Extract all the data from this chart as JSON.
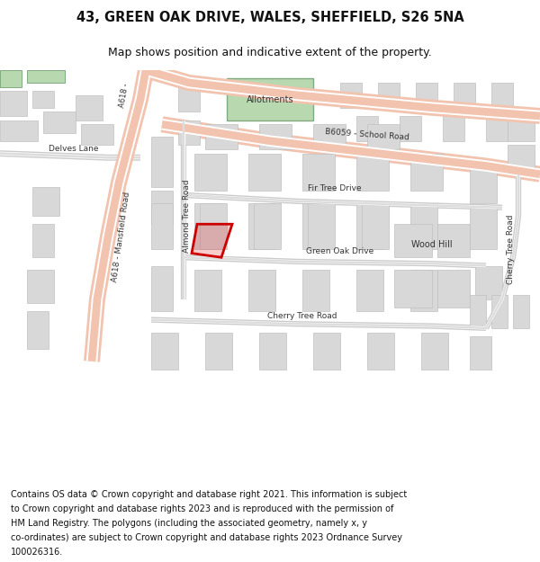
{
  "title": "43, GREEN OAK DRIVE, WALES, SHEFFIELD, S26 5NA",
  "subtitle": "Map shows position and indicative extent of the property.",
  "footer": "Contains OS data © Crown copyright and database right 2021. This information is subject to Crown copyright and database rights 2023 and is reproduced with the permission of HM Land Registry. The polygons (including the associated geometry, namely x, y co-ordinates) are subject to Crown copyright and database rights 2023 Ordnance Survey 100026316.",
  "bg_color": "#ffffff",
  "road_major_color": "#f2c4b0",
  "road_minor_color": "#e8e8e8",
  "building_color": "#d8d8d8",
  "building_edge": "#c0c0c0",
  "highlight_color": "#cc0000",
  "green_color": "#b8d8b0",
  "green_edge": "#80aa80",
  "title_fontsize": 10.5,
  "subtitle_fontsize": 9,
  "footer_fontsize": 7,
  "fig_width": 6.0,
  "fig_height": 6.25
}
